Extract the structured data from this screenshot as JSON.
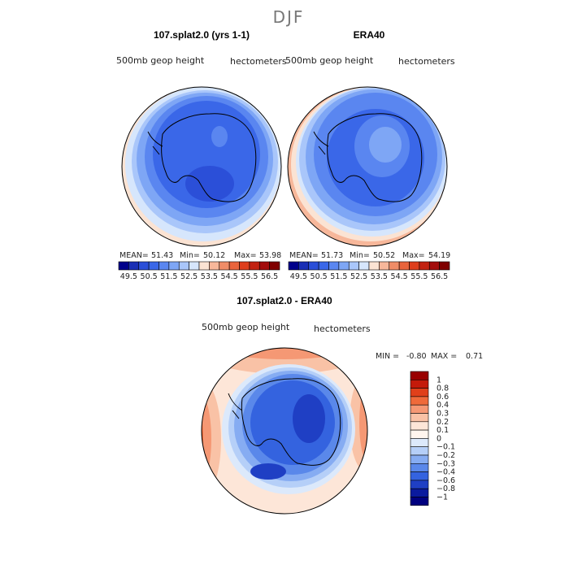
{
  "figure_title": "DJF",
  "chart_data": [
    {
      "type": "heatmap",
      "title": "107.splat2.0 (yrs 1-1)",
      "variable_label": "500mb geop height",
      "units_label": "hectometers",
      "stats": {
        "mean_label": "MEAN=",
        "mean": "51.43",
        "min_label": "Min=",
        "min": "50.12",
        "max_label": "Max=",
        "max": "53.98"
      },
      "colorbar_ticks": [
        "49.5",
        "50.5",
        "51.5",
        "52.5",
        "53.5",
        "54.5",
        "55.5",
        "56.5"
      ],
      "contour_levels": [
        49.5,
        50.0,
        50.5,
        51.0,
        51.5,
        52.0,
        52.5,
        53.0,
        53.5,
        54.0,
        54.5,
        55.0,
        55.5,
        56.0,
        56.5
      ],
      "colors": [
        "#00008b",
        "#1a2fb5",
        "#2b4fd8",
        "#3a67e8",
        "#5a86f0",
        "#7ea6f5",
        "#a9c6fa",
        "#d6e6fc",
        "#fbe3d3",
        "#f7b79a",
        "#f08c67",
        "#e9643c",
        "#de3e1c",
        "#c22212",
        "#a30d0d",
        "#800000"
      ]
    },
    {
      "type": "heatmap",
      "title": "ERA40",
      "variable_label": "500mb geop height",
      "units_label": "hectometers",
      "stats": {
        "mean_label": "MEAN=",
        "mean": "51.73",
        "min_label": "Min=",
        "min": "50.52",
        "max_label": "Max=",
        "max": "54.19"
      },
      "colorbar_ticks": [
        "49.5",
        "50.5",
        "51.5",
        "52.5",
        "53.5",
        "54.5",
        "55.5",
        "56.5"
      ],
      "contour_levels": [
        49.5,
        50.0,
        50.5,
        51.0,
        51.5,
        52.0,
        52.5,
        53.0,
        53.5,
        54.0,
        54.5,
        55.0,
        55.5,
        56.0,
        56.5
      ],
      "colors": [
        "#00008b",
        "#1a2fb5",
        "#2b4fd8",
        "#3a67e8",
        "#5a86f0",
        "#7ea6f5",
        "#a9c6fa",
        "#d6e6fc",
        "#fbe3d3",
        "#f7b79a",
        "#f08c67",
        "#e9643c",
        "#de3e1c",
        "#c22212",
        "#a30d0d",
        "#800000"
      ]
    },
    {
      "type": "heatmap",
      "title": "107.splat2.0 - ERA40",
      "variable_label": "500mb geop height",
      "units_label": "hectometers",
      "stats": {
        "min_label": "MIN =",
        "min": "-0.80",
        "max_label": "MAX =",
        "max": "0.71"
      },
      "colorbar_ticks": [
        "1",
        "0.8",
        "0.6",
        "0.4",
        "0.3",
        "0.2",
        "0.1",
        "0",
        "−0.1",
        "−0.2",
        "−0.3",
        "−0.4",
        "−0.6",
        "−0.8",
        "−1"
      ],
      "colors": [
        "#990000",
        "#c41a0a",
        "#e0401a",
        "#ef6a3a",
        "#f59874",
        "#f9c2a6",
        "#fde6d8",
        "#fff5ee",
        "#dce9fb",
        "#b5cff8",
        "#86acf2",
        "#5a88ea",
        "#3463df",
        "#1f3fc4",
        "#0a1a9e",
        "#000080"
      ]
    }
  ]
}
